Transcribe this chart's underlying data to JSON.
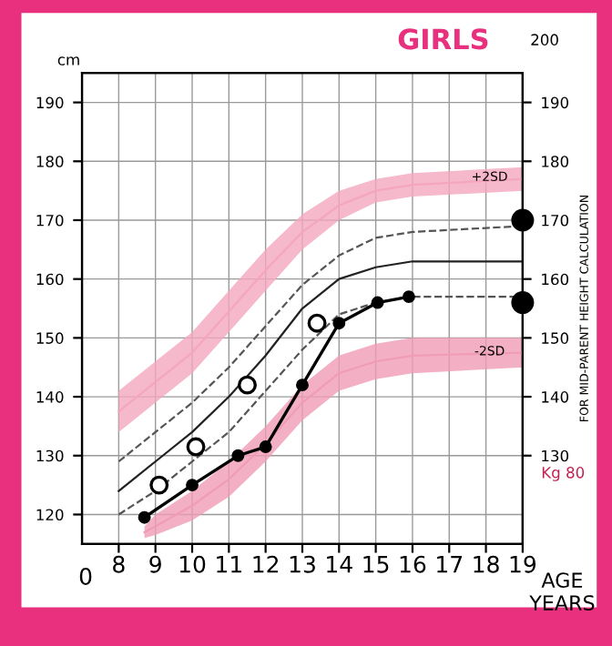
{
  "chart_data": {
    "type": "line",
    "title": "GIRLS",
    "ylabel": "cm",
    "xlabel": "AGE YEARS",
    "y2label": "FOR MID-PARENT HEIGHT CALCULATION",
    "xlim": [
      7,
      19
    ],
    "xticks": [
      8,
      9,
      10,
      11,
      12,
      13,
      14,
      15,
      16,
      17,
      18,
      19
    ],
    "ylim": [
      115,
      195
    ],
    "yticks": [
      120,
      130,
      140,
      150,
      160,
      170,
      180,
      190
    ],
    "y2lim": [
      115,
      195
    ],
    "y2ticks": [
      130,
      140,
      150,
      160,
      170,
      180,
      190
    ],
    "grid": true,
    "legend": false,
    "series": [
      {
        "color": "#f4a6be",
        "marker": "none",
        "x": [
          8,
          9,
          10,
          11,
          12,
          13,
          14,
          15,
          16,
          19
        ],
        "values": [
          137.5,
          142.5,
          147.5,
          154.5,
          161.5,
          168,
          172.5,
          175,
          176,
          177
        ],
        "lower": [
          134,
          139,
          144,
          151,
          158,
          165,
          170,
          173,
          174,
          175
        ],
        "upper": [
          141,
          146,
          151,
          158,
          165,
          171,
          175,
          177,
          178,
          179
        ]
      },
      {
        "color": "#f09cb6",
        "marker": "none",
        "x": [
          8.7,
          9,
          10,
          11,
          12,
          13,
          14,
          15,
          16,
          19
        ],
        "values": [
          117,
          118,
          121.5,
          126,
          132,
          139,
          144,
          146,
          147,
          147.5
        ],
        "lower": [
          116,
          116.5,
          119,
          123,
          129,
          136,
          141,
          143,
          144,
          145
        ],
        "upper": [
          118,
          120,
          124,
          129,
          135,
          142,
          147,
          149,
          150,
          150
        ]
      },
      {
        "color": "#555555",
        "line_style": "dashed",
        "marker": "none",
        "x": [
          8,
          9,
          10,
          11,
          12,
          13,
          14,
          15,
          16,
          19
        ],
        "values": [
          129,
          134,
          139,
          145,
          152,
          159,
          164,
          167,
          168,
          169
        ]
      },
      {
        "color": "#222222",
        "line_style": "solid",
        "marker": "none",
        "x": [
          8,
          9,
          10,
          11,
          12,
          13,
          14,
          15,
          16,
          19
        ],
        "values": [
          124,
          129,
          134,
          140,
          147,
          155,
          160,
          162,
          163,
          163
        ]
      },
      {
        "color": "#555555",
        "line_style": "dashed",
        "marker": "none",
        "x": [
          8,
          9,
          10,
          11,
          12,
          13,
          14,
          15,
          16,
          19
        ],
        "values": [
          120,
          124,
          129,
          134,
          141,
          148,
          154,
          156,
          157,
          157
        ]
      },
      {
        "color": "#000000",
        "line_style": "solid",
        "marker": "circle",
        "x": [
          8.7,
          10.0,
          11.25,
          12.0,
          13.0,
          14.0,
          15.05,
          15.9
        ],
        "values": [
          119.5,
          125,
          130,
          131.5,
          142,
          152.5,
          156,
          157
        ]
      },
      {
        "type": "scatter",
        "color": "#000000",
        "marker": "circle",
        "x": [
          9.1,
          10.1,
          11.5,
          13.4
        ],
        "values": [
          125,
          131.5,
          142,
          152.5
        ]
      },
      {
        "color": "#000000",
        "marker": "circle",
        "x": [
          19
        ],
        "values": [
          170
        ]
      },
      {
        "color": "#000000",
        "marker": "circle",
        "x": [
          19
        ],
        "values": [
          156
        ]
      }
    ],
    "annotations": [
      "+2SD",
      "-2SD",
      "200",
      "Kg 80",
      "0"
    ]
  }
}
